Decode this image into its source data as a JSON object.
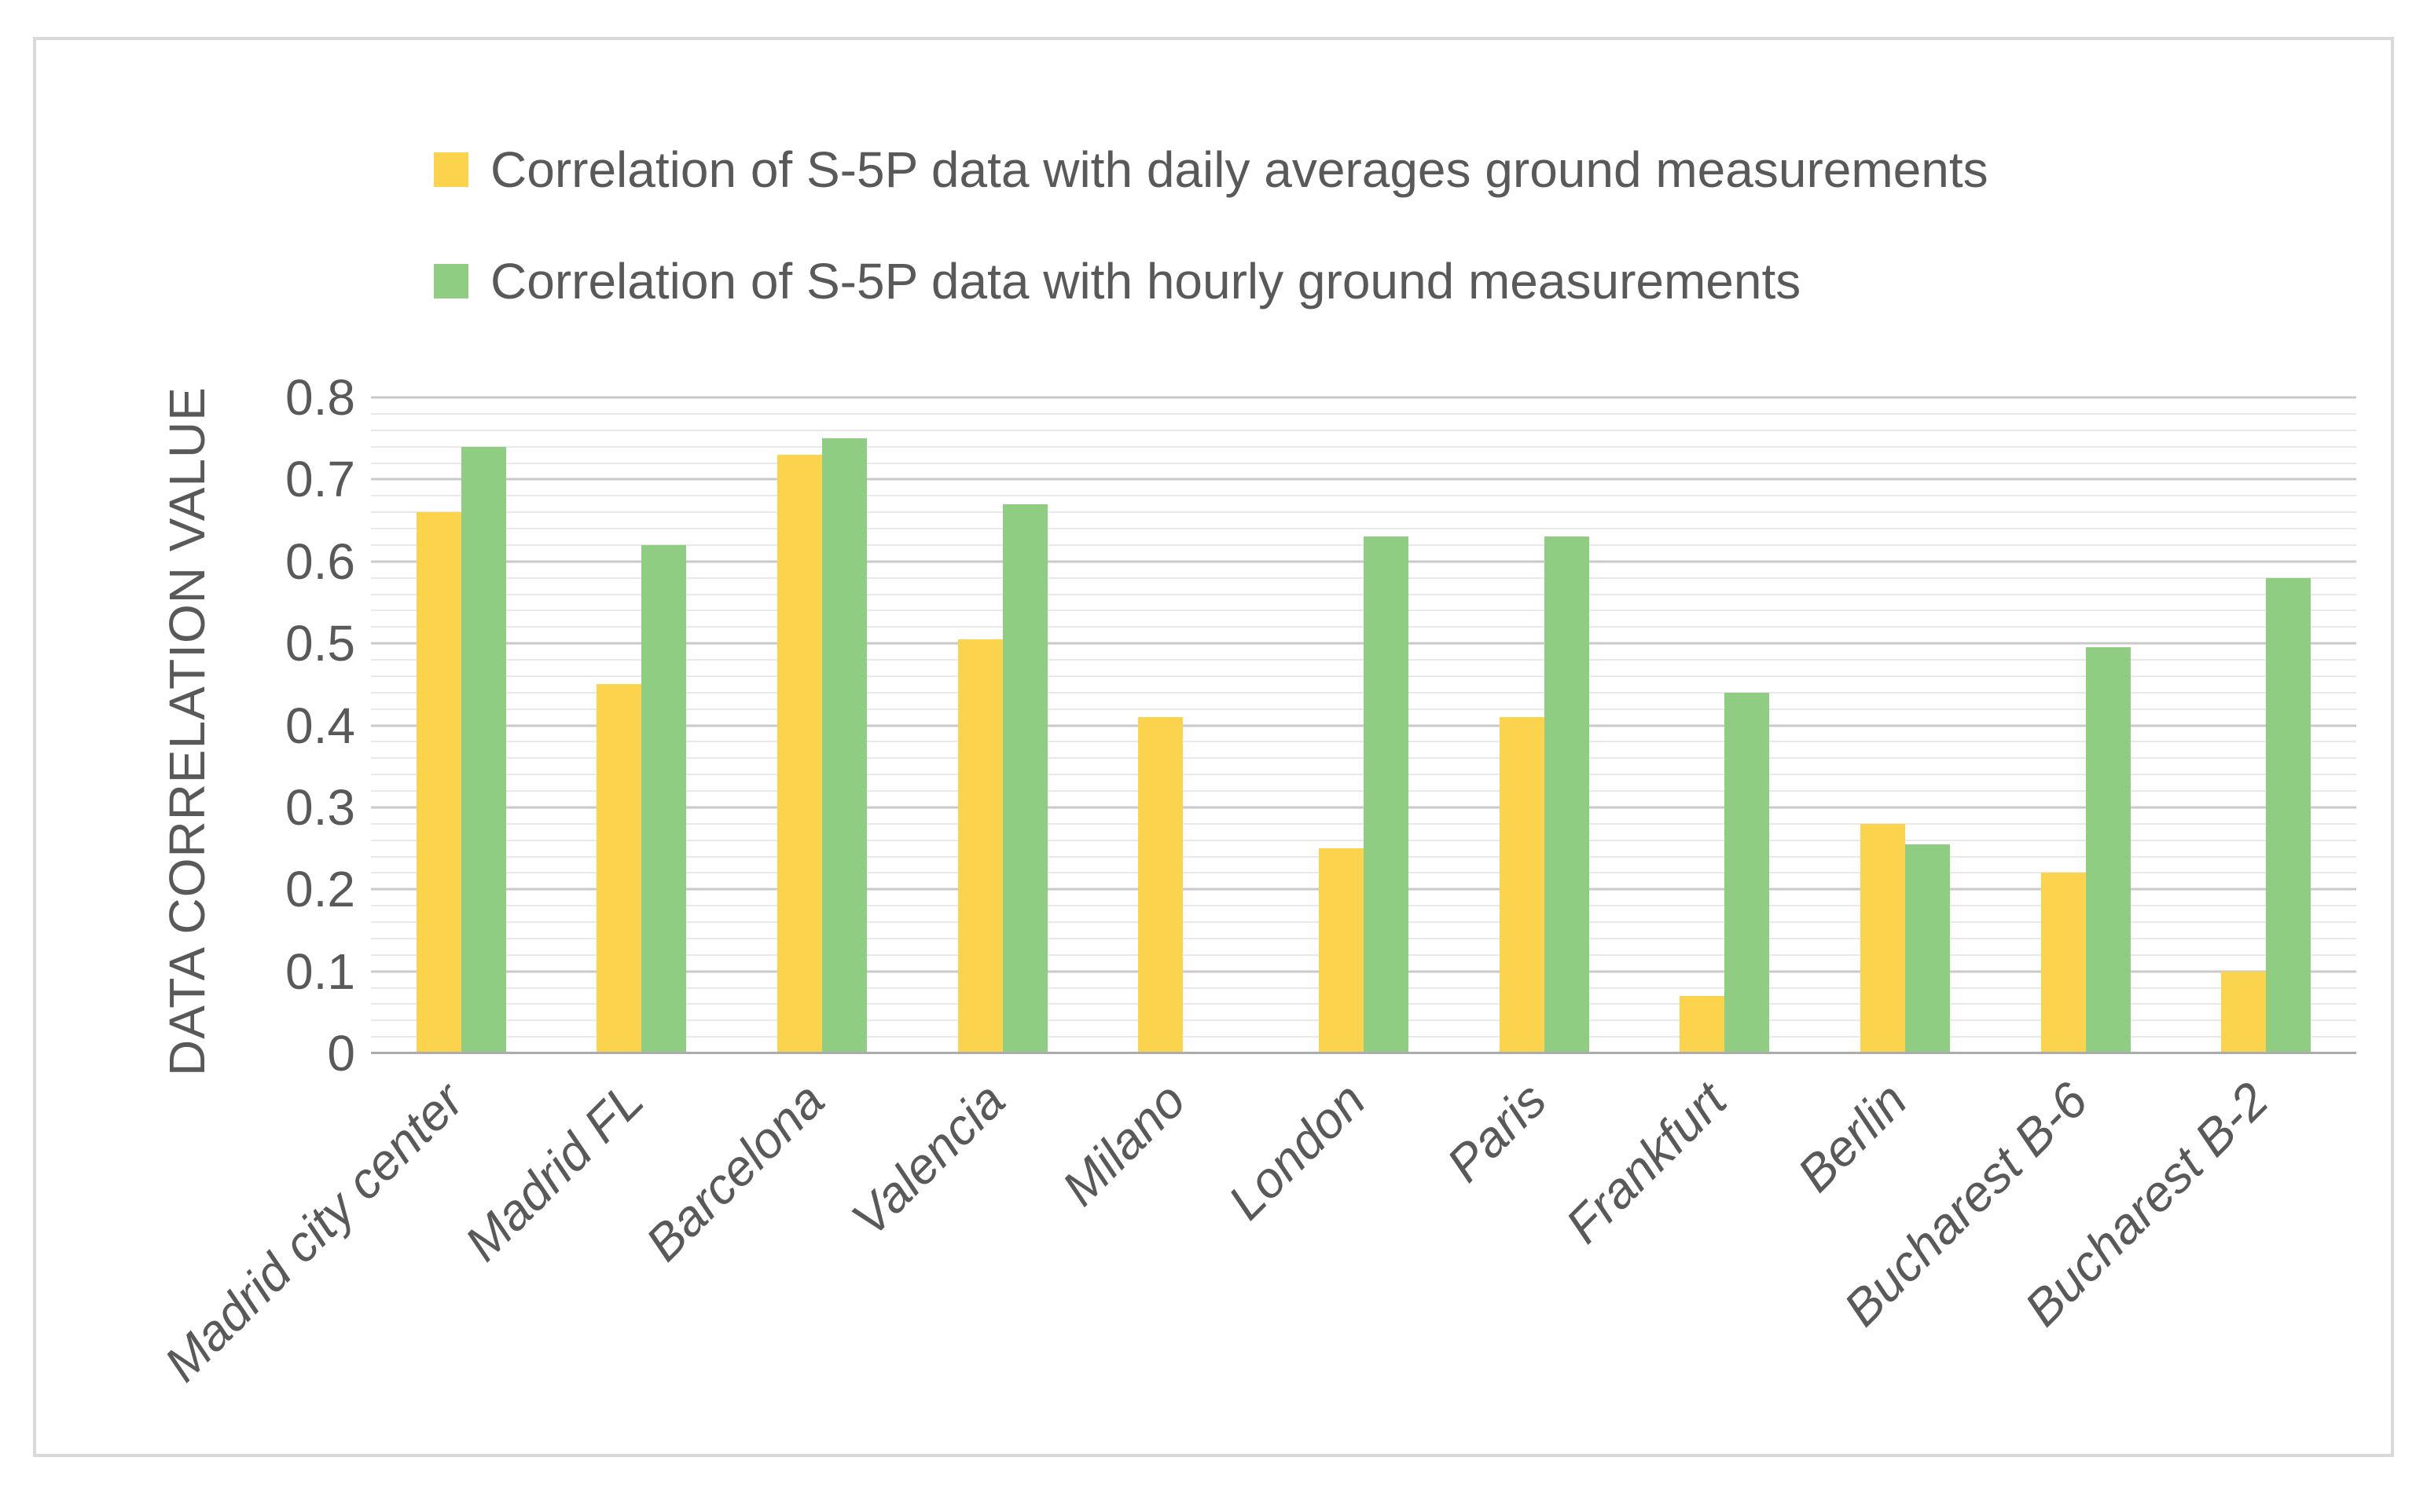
{
  "figure": {
    "background": "#FFFFFF",
    "border_color": "#D9D9D9"
  },
  "legend": {
    "position": "top-left",
    "items": [
      {
        "key": "daily",
        "label": "Correlation of S-5P data with daily averages ground measurements",
        "color": "#FCD34D"
      },
      {
        "key": "hourly",
        "label": "Correlation of S-5P data with hourly ground measurements",
        "color": "#8FCD82"
      }
    ]
  },
  "chart_data": {
    "type": "bar",
    "categories": [
      "Madrid city center",
      "Madrid FL",
      "Barcelona",
      "Valencia",
      "Milano",
      "London",
      "Paris",
      "Frankfurt",
      "Berlin",
      "Bucharest B-6",
      "Bucharest B-2"
    ],
    "series": [
      {
        "name": "Correlation of S-5P data with daily averages ground measurements",
        "key": "daily",
        "color": "#FCD34D",
        "values": [
          0.66,
          0.45,
          0.73,
          0.505,
          0.41,
          0.25,
          0.41,
          0.07,
          0.28,
          0.22,
          0.1
        ]
      },
      {
        "name": "Correlation of S-5P data with hourly ground measurements",
        "key": "hourly",
        "color": "#8FCD82",
        "values": [
          0.74,
          0.62,
          0.75,
          0.67,
          null,
          0.63,
          0.63,
          0.44,
          0.255,
          0.495,
          0.58
        ]
      }
    ],
    "title": "",
    "xlabel": "",
    "ylabel": "DATA CORRELATION VALUE",
    "ylim": [
      0,
      0.8
    ],
    "ytick_labels": [
      "0",
      "0.1",
      "0.2",
      "0.3",
      "0.4",
      "0.5",
      "0.6",
      "0.7",
      "0.8"
    ],
    "ytick_step": 0.1,
    "minor_gridline_step": 0.02,
    "grid": "on",
    "legend_position": "top-left",
    "colors": {
      "text": "#595959",
      "major_gridline": "#C9C9C9",
      "minor_gridline": "#E9E9E9",
      "axis_line": "#ACACAC"
    }
  }
}
